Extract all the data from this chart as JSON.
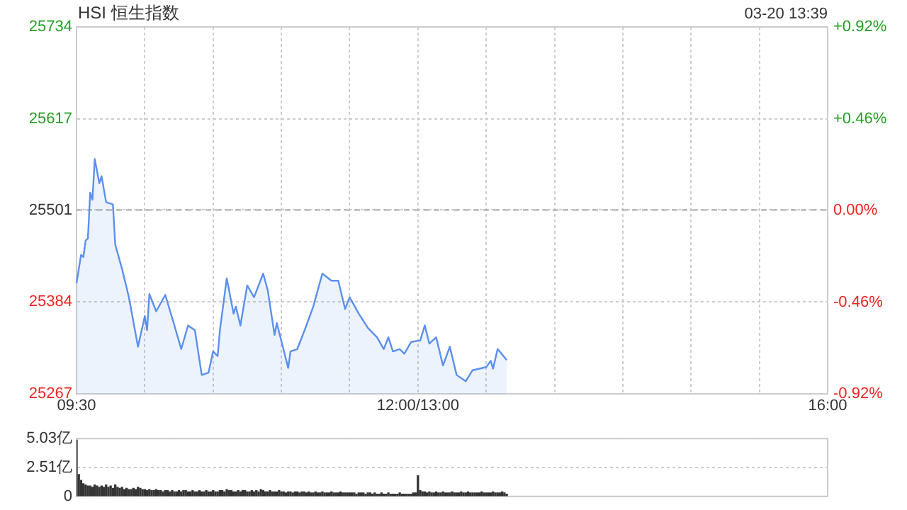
{
  "chart_data": [
    {
      "type": "area",
      "title": "HSI 恒生指数",
      "annotations": [
        "03-20 13:39"
      ],
      "categories": [
        "09:30",
        null,
        null,
        null,
        null,
        null,
        null,
        null,
        null,
        null,
        null,
        null,
        null,
        null,
        null,
        null,
        null,
        null,
        null,
        null,
        null,
        null,
        null,
        null,
        null,
        null,
        null,
        null,
        null,
        null,
        null,
        null,
        null,
        null,
        null,
        null,
        null,
        null,
        null,
        null,
        null,
        null,
        null,
        null,
        null,
        null,
        null,
        null,
        null,
        null,
        null,
        null,
        null,
        null,
        null,
        null,
        null,
        null,
        null,
        null,
        null,
        null,
        null,
        null,
        null,
        null,
        null,
        null,
        null,
        null,
        null,
        null,
        null,
        null,
        null,
        null,
        null,
        null,
        null,
        null,
        null,
        null,
        null,
        null,
        null,
        null,
        null,
        null,
        null,
        null,
        null,
        null,
        null,
        null,
        null,
        null,
        null,
        null,
        null,
        null,
        null,
        null,
        null,
        null,
        null,
        null,
        null,
        null,
        null,
        null,
        null,
        null,
        null,
        null,
        null,
        null,
        null,
        null,
        null,
        null,
        null,
        null,
        null,
        null,
        null,
        null,
        null,
        null,
        null,
        null,
        null,
        null,
        null,
        null,
        null,
        null,
        null,
        null,
        null,
        null,
        null,
        null,
        null,
        null,
        null,
        null,
        null,
        null,
        null,
        null,
        "12:00/13:00",
        null,
        null,
        null,
        null,
        null,
        null,
        null,
        null,
        null,
        null,
        null,
        null,
        null,
        null,
        null,
        null,
        null,
        null,
        null,
        null,
        null,
        null,
        null,
        null,
        null,
        null,
        null,
        null,
        null,
        null,
        null,
        null,
        null,
        null,
        null,
        null,
        null,
        null,
        null,
        null,
        null,
        null,
        null,
        null,
        null,
        null,
        null,
        null,
        null,
        null,
        null,
        null,
        null,
        null,
        null,
        null,
        null,
        null,
        null,
        null,
        null,
        null,
        null,
        null,
        null,
        null,
        null,
        null,
        null,
        null,
        null,
        null,
        null,
        null,
        null,
        null,
        null,
        null,
        null,
        null,
        null,
        null,
        null,
        null,
        null,
        null,
        null,
        null,
        null,
        null,
        null,
        null,
        null,
        null,
        null,
        null,
        null,
        null,
        null,
        null,
        null,
        null,
        null,
        null,
        null,
        null,
        null,
        null,
        null,
        null,
        null,
        null,
        null,
        null,
        null,
        null,
        null,
        null,
        null,
        null,
        null,
        null,
        null,
        null,
        null,
        null,
        null,
        null,
        null,
        null,
        null,
        null,
        null,
        null,
        null,
        null,
        null,
        null,
        null,
        null,
        null,
        null,
        null,
        null,
        null,
        null,
        null,
        null,
        null,
        null,
        null,
        null,
        null,
        null,
        null,
        null,
        null,
        null,
        null,
        null,
        null,
        null,
        null,
        null,
        null,
        null,
        null,
        null,
        null,
        null,
        null,
        null,
        null,
        null,
        null,
        null,
        null,
        null,
        null,
        "16:00"
      ],
      "series": [
        {
          "color": "#5b8ff0",
          "values": [
            25408,
            null,
            25444,
            25441,
            25462,
            25465,
            25523,
            25514,
            25566,
            null,
            25535,
            25544,
            null,
            25511,
            null,
            null,
            25508,
            25457,
            null,
            null,
            25426,
            null,
            null,
            25390,
            null,
            null,
            null,
            25327,
            null,
            null,
            25366,
            25348,
            25394,
            null,
            null,
            25372,
            null,
            null,
            null,
            25393,
            null,
            null,
            null,
            25354,
            null,
            null,
            25324,
            null,
            null,
            25354,
            null,
            null,
            25348,
            null,
            null,
            25291,
            null,
            null,
            25294,
            null,
            25321,
            null,
            25315,
            25348,
            null,
            null,
            25414,
            null,
            null,
            25369,
            25378,
            null,
            25354,
            null,
            null,
            25405,
            null,
            null,
            25390,
            null,
            null,
            null,
            25420,
            null,
            25399,
            null,
            null,
            25342,
            25357,
            null,
            null,
            null,
            null,
            25300,
            25321,
            null,
            null,
            25324,
            null,
            null,
            null,
            25354,
            null,
            null,
            25378,
            null,
            null,
            null,
            25420,
            null,
            null,
            null,
            25411,
            null,
            null,
            25411,
            null,
            null,
            25375,
            null,
            25390,
            null,
            null,
            null,
            25369,
            null,
            null,
            null,
            25351,
            null,
            null,
            null,
            25339,
            null,
            null,
            25324,
            null,
            25339,
            null,
            25321,
            null,
            null,
            25324,
            null,
            25318,
            null,
            null,
            25333,
            null,
            null,
            null,
            25335,
            null,
            25354,
            null,
            25331,
            null,
            null,
            25339,
            null,
            null,
            25303,
            null,
            null,
            25327,
            null,
            null,
            25291,
            null,
            null,
            null,
            25283,
            null,
            null,
            25297,
            null,
            null,
            null,
            null,
            null,
            25301,
            null,
            25309,
            25299,
            null,
            25324,
            null,
            null,
            null,
            25310,
            null,
            null,
            null,
            null,
            null,
            null,
            null,
            null,
            null,
            null,
            null,
            null,
            null,
            null,
            null,
            null,
            null,
            null,
            null,
            null,
            null,
            null,
            null,
            null,
            null,
            null,
            null,
            null,
            null,
            null,
            null,
            null,
            null,
            null,
            null,
            null,
            null,
            null,
            null,
            null,
            null,
            null,
            null,
            null,
            null,
            null,
            null,
            null,
            null,
            null,
            null,
            null,
            null,
            null,
            null,
            null,
            null,
            null,
            null,
            null,
            null,
            null,
            null,
            null,
            null,
            null,
            null,
            null,
            null,
            null,
            null,
            null,
            null,
            null,
            null,
            null,
            null,
            null,
            null,
            null,
            null,
            null,
            null,
            null,
            null,
            null,
            null,
            null,
            null,
            null,
            null,
            null,
            null,
            null,
            null,
            null,
            null,
            null,
            null,
            null,
            null,
            null,
            null,
            null,
            null,
            null,
            null,
            null,
            null,
            null,
            null,
            null,
            null,
            null,
            null,
            null,
            null,
            null,
            null,
            null,
            null,
            null,
            null,
            null,
            null,
            null,
            null,
            null,
            null,
            null,
            null,
            null,
            null,
            null,
            null,
            null,
            null,
            null,
            null,
            null,
            null
          ]
        }
      ],
      "ylim": [
        25267,
        25734
      ],
      "yticks": [
        25267,
        25384,
        25501,
        25617,
        25734
      ],
      "y2lim": [
        -0.92,
        0.92
      ],
      "y2ticks": [
        {
          "value": -0.92,
          "label": "-0.92%"
        },
        {
          "value": -0.46,
          "label": "-0.46%"
        },
        {
          "value": 0,
          "label": "0.00%"
        },
        {
          "value": 0.46,
          "label": "+0.46%"
        },
        {
          "value": 0.92,
          "label": "+0.92%"
        }
      ],
      "ref_lines": [
        {
          "axis": "y",
          "value": 25501,
          "line_style": "dashed"
        }
      ],
      "grid": true,
      "legend": false,
      "marker": "none",
      "line_style": "solid"
    },
    {
      "type": "bar",
      "color": "#333333",
      "categories": [
        null,
        null,
        null,
        null,
        null,
        null,
        null,
        null,
        null,
        null,
        null,
        null,
        null,
        null,
        null,
        null,
        null,
        null,
        null,
        null,
        null,
        null,
        null,
        null,
        null,
        null,
        null,
        null,
        null,
        null,
        null,
        null,
        null,
        null,
        null,
        null,
        null,
        null,
        null,
        null,
        null,
        null,
        null,
        null,
        null,
        null,
        null,
        null,
        null,
        null,
        null,
        null,
        null,
        null,
        null,
        null,
        null,
        null,
        null,
        null,
        null,
        null,
        null,
        null,
        null,
        null,
        null,
        null,
        null,
        null,
        null,
        null,
        null,
        null,
        null,
        null,
        null,
        null,
        null,
        null,
        null,
        null,
        null,
        null,
        null,
        null,
        null,
        null,
        null,
        null,
        null,
        null,
        null,
        null,
        null,
        null,
        null,
        null,
        null,
        null,
        null,
        null,
        null,
        null,
        null,
        null,
        null,
        null,
        null,
        null,
        null,
        null,
        null,
        null,
        null,
        null,
        null,
        null,
        null,
        null,
        null,
        null,
        null,
        null,
        null,
        null,
        null,
        null,
        null,
        null,
        null,
        null,
        null,
        null,
        null,
        null,
        null,
        null,
        null,
        null,
        null,
        null,
        null,
        null,
        null,
        null,
        null,
        null,
        null,
        null,
        null,
        null,
        null,
        null,
        null,
        null,
        null,
        null,
        null,
        null,
        null,
        null,
        null,
        null,
        null,
        null,
        null,
        null,
        null,
        null,
        null,
        null,
        null,
        null,
        null,
        null,
        null,
        null,
        null,
        null,
        null,
        null,
        null,
        null,
        null,
        null,
        null,
        null,
        null,
        null,
        null,
        null,
        null,
        null,
        null,
        null,
        null,
        null,
        null,
        null,
        null,
        null,
        null,
        null,
        null,
        null,
        null,
        null,
        null,
        null,
        null,
        null,
        null,
        null,
        null,
        null,
        null,
        null,
        null,
        null,
        null,
        null,
        null,
        null,
        null,
        null,
        null,
        null,
        null,
        null,
        null,
        null,
        null,
        null,
        null,
        null,
        null,
        null,
        null,
        null,
        null,
        null,
        null,
        null,
        null,
        null,
        null,
        null,
        null,
        null,
        null,
        null,
        null,
        null,
        null,
        null,
        null,
        null,
        null,
        null,
        null,
        null,
        null,
        null,
        null,
        null,
        null,
        null,
        null,
        null,
        null,
        null,
        null,
        null,
        null,
        null,
        null,
        null,
        null,
        null,
        null,
        null,
        null,
        null,
        null,
        null,
        null,
        null,
        null,
        null,
        null,
        null,
        null,
        null,
        null,
        null,
        null,
        null,
        null,
        null,
        null,
        null,
        null,
        null,
        null,
        null,
        null,
        null,
        null,
        null,
        null,
        null,
        null,
        null,
        null,
        null,
        null,
        null,
        null,
        null,
        null,
        null,
        null,
        null,
        null,
        null,
        null,
        null,
        null,
        null,
        null
      ],
      "values": [
        4.9,
        1.9,
        1.4,
        1.1,
        1.0,
        0.9,
        0.9,
        0.8,
        1.0,
        0.9,
        0.8,
        0.9,
        0.8,
        1.0,
        0.8,
        0.9,
        0.7,
        1.0,
        0.8,
        0.7,
        0.8,
        0.6,
        0.7,
        0.6,
        0.6,
        0.7,
        0.6,
        0.8,
        0.7,
        0.6,
        0.6,
        0.5,
        0.6,
        0.5,
        0.5,
        0.6,
        0.5,
        0.5,
        0.4,
        0.5,
        0.5,
        0.4,
        0.5,
        0.4,
        0.4,
        0.5,
        0.4,
        0.5,
        0.5,
        0.4,
        0.4,
        0.5,
        0.4,
        0.4,
        0.5,
        0.4,
        0.4,
        0.5,
        0.4,
        0.4,
        0.5,
        0.4,
        0.4,
        0.5,
        0.5,
        0.4,
        0.6,
        0.5,
        0.5,
        0.4,
        0.4,
        0.5,
        0.4,
        0.5,
        0.5,
        0.4,
        0.4,
        0.5,
        0.4,
        0.5,
        0.4,
        0.6,
        0.5,
        0.4,
        0.4,
        0.5,
        0.4,
        0.4,
        0.4,
        0.5,
        0.4,
        0.4,
        0.3,
        0.4,
        0.4,
        0.3,
        0.4,
        0.4,
        0.3,
        0.4,
        0.4,
        0.3,
        0.4,
        0.3,
        0.3,
        0.4,
        0.3,
        0.3,
        0.4,
        0.3,
        0.3,
        0.3,
        0.4,
        0.3,
        0.3,
        0.3,
        0.4,
        0.3,
        0.3,
        0.3,
        0.3,
        0.3,
        0.3,
        0.2,
        0.3,
        0.3,
        0.3,
        0.2,
        0.3,
        0.3,
        0.2,
        0.3,
        0.2,
        0.2,
        0.3,
        0.2,
        0.2,
        0.3,
        0.2,
        0.2,
        0.2,
        0.2,
        0.3,
        0.2,
        0.2,
        0.2,
        0.2,
        0.2,
        0.3,
        0.3,
        1.8,
        0.5,
        0.4,
        0.4,
        0.3,
        0.4,
        0.3,
        0.3,
        0.4,
        0.3,
        0.3,
        0.4,
        0.3,
        0.3,
        0.3,
        0.4,
        0.3,
        0.3,
        0.3,
        0.4,
        0.3,
        0.3,
        0.4,
        0.3,
        0.3,
        0.3,
        0.3,
        0.3,
        0.4,
        0.3,
        0.3,
        0.3,
        0.3,
        0.4,
        0.3,
        0.3,
        0.3,
        0.4,
        0.3,
        0.2,
        null,
        null,
        null,
        null,
        null,
        null,
        null,
        null,
        null,
        null,
        null,
        null,
        null,
        null,
        null,
        null,
        null,
        null,
        null,
        null,
        null,
        null,
        null,
        null,
        null,
        null,
        null,
        null,
        null,
        null,
        null,
        null,
        null,
        null,
        null,
        null,
        null,
        null,
        null,
        null,
        null,
        null,
        null,
        null,
        null,
        null,
        null,
        null,
        null,
        null,
        null,
        null,
        null,
        null,
        null,
        null,
        null,
        null,
        null,
        null,
        null,
        null,
        null,
        null,
        null,
        null,
        null,
        null,
        null,
        null,
        null,
        null,
        null,
        null,
        null,
        null,
        null,
        null,
        null,
        null,
        null,
        null,
        null,
        null,
        null,
        null,
        null,
        null,
        null,
        null,
        null,
        null,
        null,
        null,
        null,
        null,
        null,
        null,
        null,
        null,
        null,
        null,
        null,
        null,
        null,
        null,
        null,
        null,
        null,
        null,
        null,
        null,
        null,
        null,
        null,
        null,
        null,
        null,
        null,
        null,
        null,
        null,
        null,
        null,
        null,
        null,
        null,
        null,
        null,
        null,
        null,
        null,
        null,
        null,
        null,
        null,
        null,
        null,
        null,
        null,
        null
      ],
      "ylim": [
        0,
        5.03
      ],
      "yticks": [
        0,
        {
          "value": 2.51,
          "label": "2.51亿"
        },
        {
          "value": 5.03,
          "label": "5.03亿"
        }
      ],
      "grid": "y",
      "tick_labels": "y",
      "legend": false
    }
  ]
}
